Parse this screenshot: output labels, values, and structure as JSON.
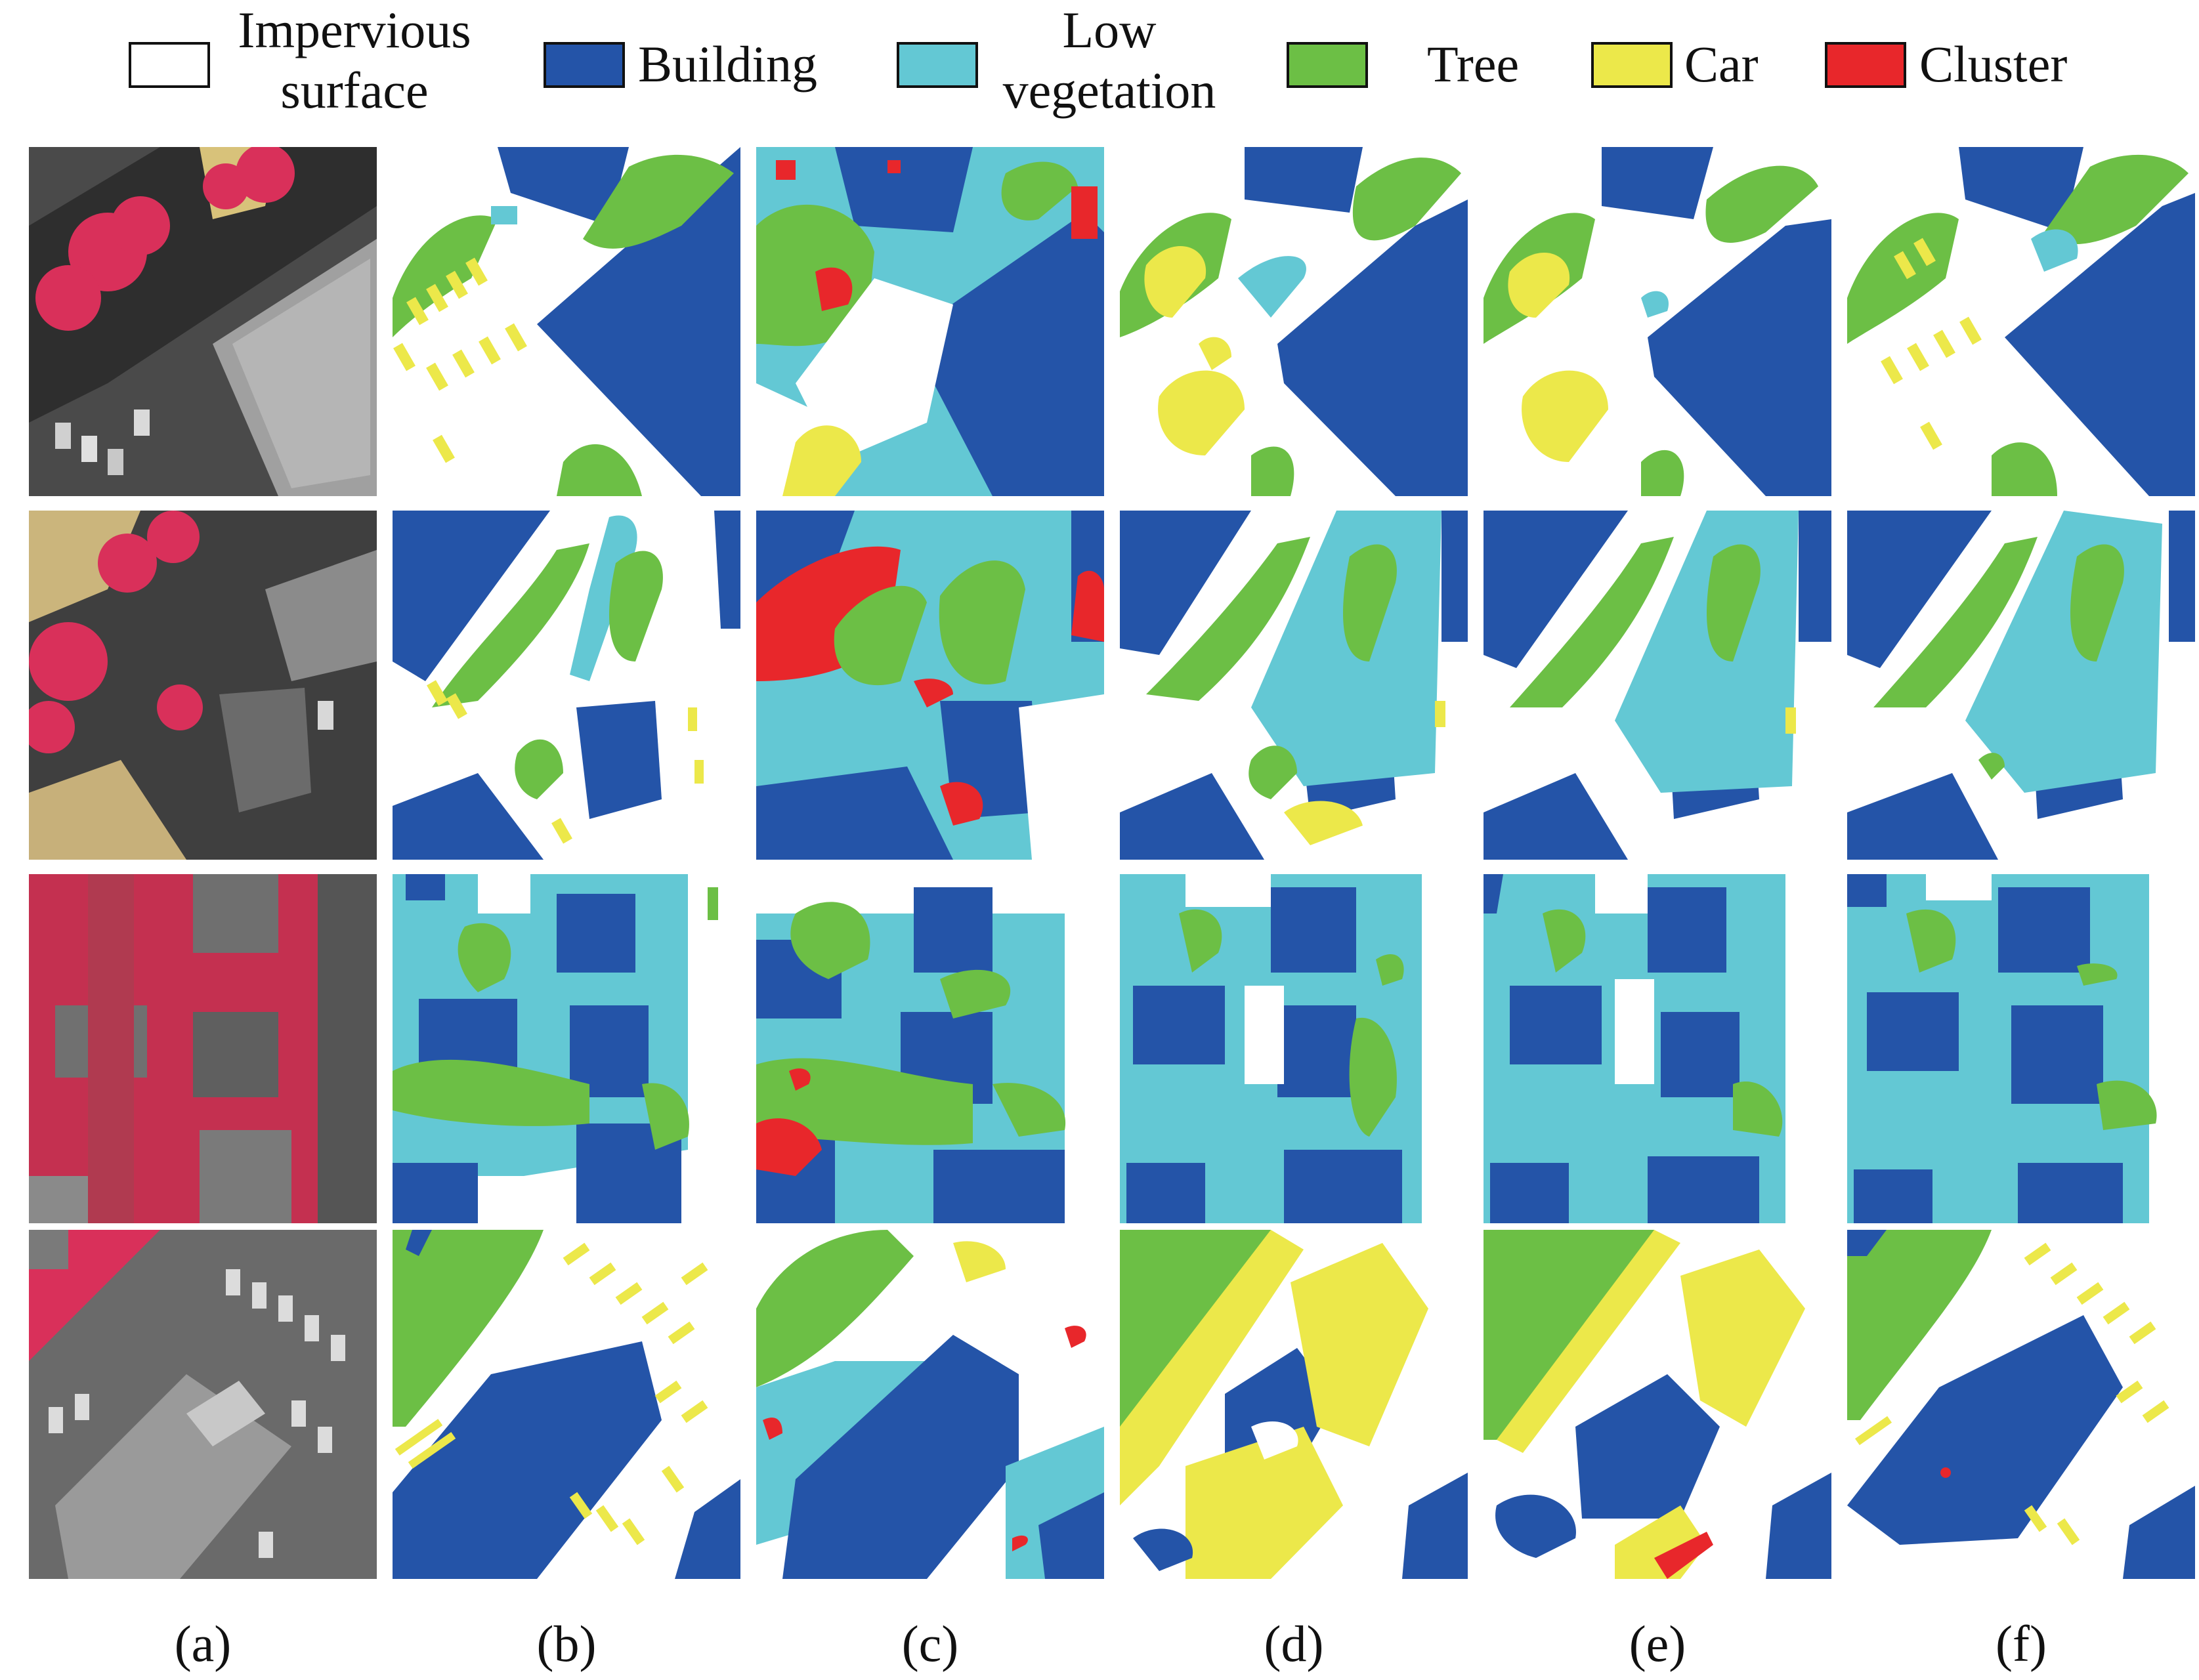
{
  "legend": {
    "items": [
      {
        "label": "Impervious surface",
        "line1": "Impervious",
        "line2": "surface",
        "color": "#ffffff"
      },
      {
        "label": "Building",
        "color": "#2454a8"
      },
      {
        "label": "Low vegetation",
        "line1": "Low",
        "line2": "vegetation",
        "color": "#63c8d4"
      },
      {
        "label": "Tree",
        "color": "#6cbf45"
      },
      {
        "label": "Car",
        "color": "#ece84a"
      },
      {
        "label": "Cluster",
        "color": "#e8272b"
      }
    ]
  },
  "columns": {
    "captions": [
      "(a)",
      "(b)",
      "(c)",
      "(d)",
      "(e)",
      "(f)"
    ]
  },
  "colors": {
    "impervious": "#ffffff",
    "building": "#2454a8",
    "low_vegetation": "#63c8d4",
    "tree": "#6cbf45",
    "car": "#ece84a",
    "cluster": "#e8272b",
    "photo_road": "#3a3a3a",
    "photo_tree": "#d9305a",
    "photo_roof": "#9a9a9a"
  }
}
